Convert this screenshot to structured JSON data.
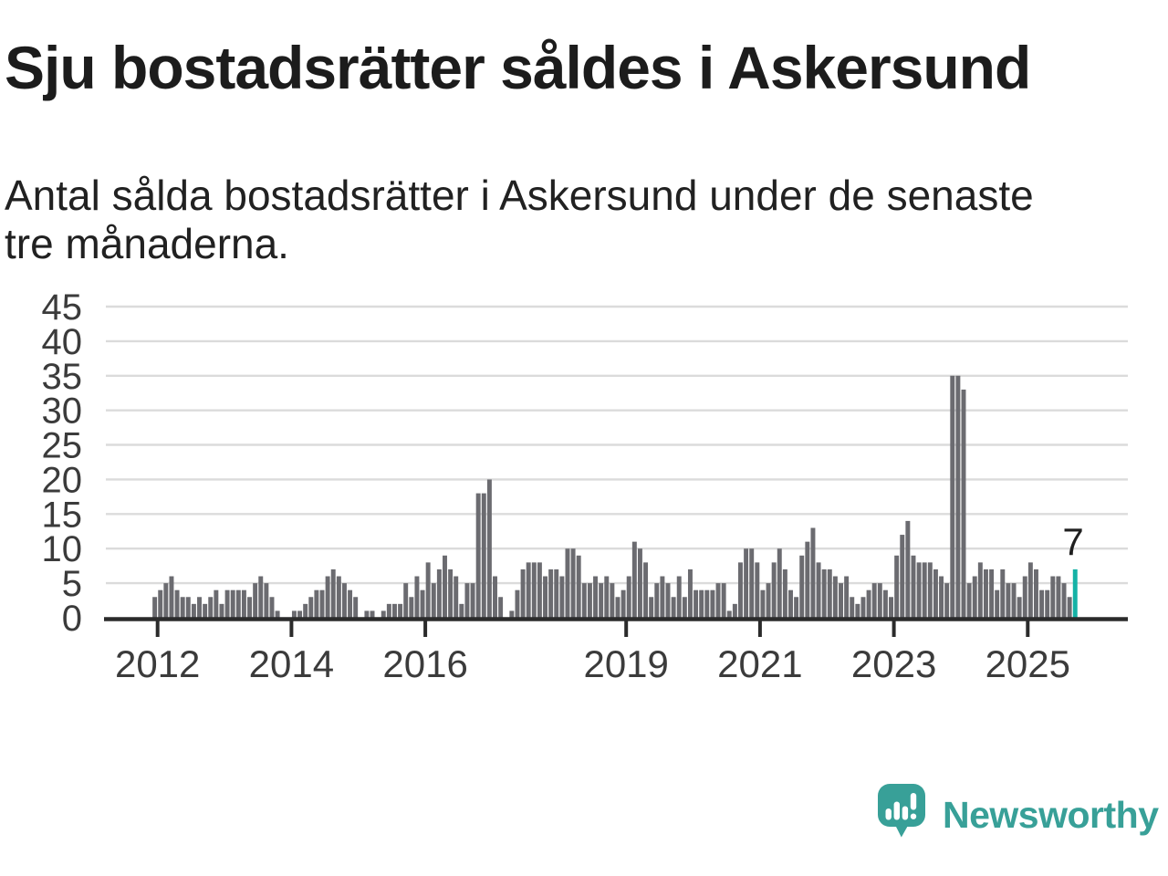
{
  "header": {
    "title": "Sju bostadsrätter såldes i Askersund",
    "subtitle_line1": "Antal sålda bostadsrätter i Askersund under de senaste",
    "subtitle_line2": "tre månaderna."
  },
  "chart_data": {
    "type": "bar",
    "title": "Sju bostadsrätter såldes i Askersund",
    "subtitle": "Antal sålda bostadsrätter i Askersund under de senaste tre månaderna.",
    "start_month": "2011-12",
    "end_month": "2025-09",
    "frequency": "monthly",
    "values": [
      3,
      4,
      5,
      6,
      4,
      3,
      3,
      2,
      3,
      2,
      3,
      4,
      2,
      4,
      4,
      4,
      4,
      3,
      5,
      6,
      5,
      3,
      1,
      0,
      0,
      1,
      1,
      2,
      3,
      4,
      4,
      6,
      7,
      6,
      5,
      4,
      3,
      0,
      1,
      1,
      0,
      1,
      2,
      2,
      2,
      5,
      3,
      6,
      4,
      8,
      5,
      7,
      9,
      7,
      6,
      2,
      5,
      5,
      18,
      18,
      20,
      6,
      3,
      0,
      1,
      4,
      7,
      8,
      8,
      8,
      6,
      7,
      7,
      6,
      10,
      10,
      9,
      5,
      5,
      6,
      5,
      6,
      5,
      3,
      4,
      6,
      11,
      10,
      8,
      3,
      5,
      6,
      5,
      3,
      6,
      3,
      7,
      4,
      4,
      4,
      4,
      5,
      5,
      1,
      2,
      8,
      10,
      10,
      8,
      4,
      5,
      8,
      10,
      7,
      4,
      3,
      9,
      11,
      13,
      8,
      7,
      7,
      6,
      5,
      6,
      3,
      2,
      3,
      4,
      5,
      5,
      4,
      3,
      9,
      12,
      14,
      9,
      8,
      8,
      8,
      7,
      6,
      5,
      35,
      35,
      33,
      5,
      6,
      8,
      7,
      7,
      4,
      7,
      5,
      5,
      3,
      6,
      8,
      7,
      4,
      4,
      6,
      6,
      5,
      3,
      7
    ],
    "highlight": {
      "label": "7",
      "value": 7,
      "color": "#15b2a6"
    },
    "y_ticks": [
      0,
      5,
      10,
      15,
      20,
      25,
      30,
      35,
      40,
      45
    ],
    "ylim": [
      0,
      45
    ],
    "x_ticks": [
      {
        "label": "2012",
        "month_index": 1
      },
      {
        "label": "2014",
        "month_index": 25
      },
      {
        "label": "2016",
        "month_index": 49
      },
      {
        "label": "2019",
        "month_index": 85
      },
      {
        "label": "2021",
        "month_index": 109
      },
      {
        "label": "2023",
        "month_index": 133
      },
      {
        "label": "2025",
        "month_index": 157
      }
    ],
    "grid": true,
    "legend": "none",
    "bar_color": "#6b6b70",
    "grid_color": "#dbdbdb",
    "axis_color": "#2b2b2b",
    "axis_label_color": "#3b3b3b",
    "annotation_color": "#1f1f1f"
  },
  "branding": {
    "wordmark": "Newsworthy",
    "color": "#38a098",
    "icon": "newsworthy-speech-bubble-chart-icon"
  }
}
